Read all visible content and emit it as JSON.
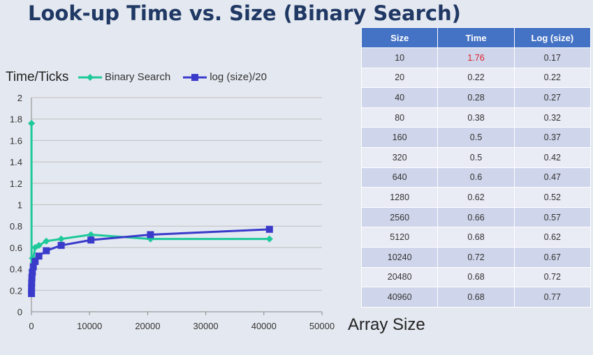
{
  "slide": {
    "title": "Look-up Time vs. Size (Binary Search)"
  },
  "colors": {
    "binary_search": "#1dc99a",
    "log_size": "#3a3acb",
    "title": "#1f3864",
    "table_header": "#4472c4",
    "highlight": "#e0202a"
  },
  "chart_data": {
    "type": "line",
    "ylabel": "Time/Ticks",
    "xlabel": "Array Size",
    "xlim": [
      0,
      50000
    ],
    "ylim": [
      0,
      2
    ],
    "x_ticks": [
      "0",
      "10000",
      "20000",
      "30000",
      "40000",
      "50000"
    ],
    "y_ticks": [
      "0",
      "0.2",
      "0.4",
      "0.6",
      "0.8",
      "1",
      "1.2",
      "1.4",
      "1.6",
      "1.8",
      "2"
    ],
    "x_tick_values": [
      0,
      10000,
      20000,
      30000,
      40000,
      50000
    ],
    "y_tick_values": [
      0,
      0.2,
      0.4,
      0.6,
      0.8,
      1,
      1.2,
      1.4,
      1.6,
      1.8,
      2
    ],
    "grid": "horizontal",
    "legend_position": "top",
    "x": [
      10,
      20,
      40,
      80,
      160,
      320,
      640,
      1280,
      2560,
      5120,
      10240,
      20480,
      40960
    ],
    "series": [
      {
        "name": "Binary Search",
        "marker": "diamond",
        "values": [
          1.76,
          0.22,
          0.28,
          0.38,
          0.5,
          0.5,
          0.6,
          0.62,
          0.66,
          0.68,
          0.72,
          0.68,
          0.68
        ]
      },
      {
        "name": "log (size)/20",
        "marker": "square",
        "values": [
          0.17,
          0.22,
          0.27,
          0.32,
          0.37,
          0.42,
          0.47,
          0.52,
          0.57,
          0.62,
          0.67,
          0.72,
          0.77
        ]
      }
    ]
  },
  "table": {
    "headers": [
      "Size",
      "Time",
      "Log (size)"
    ],
    "rows": [
      [
        "10",
        "1.76",
        "0.17"
      ],
      [
        "20",
        "0.22",
        "0.22"
      ],
      [
        "40",
        "0.28",
        "0.27"
      ],
      [
        "80",
        "0.38",
        "0.32"
      ],
      [
        "160",
        "0.5",
        "0.37"
      ],
      [
        "320",
        "0.5",
        "0.42"
      ],
      [
        "640",
        "0.6",
        "0.47"
      ],
      [
        "1280",
        "0.62",
        "0.52"
      ],
      [
        "2560",
        "0.66",
        "0.57"
      ],
      [
        "5120",
        "0.68",
        "0.62"
      ],
      [
        "10240",
        "0.72",
        "0.67"
      ],
      [
        "20480",
        "0.68",
        "0.72"
      ],
      [
        "40960",
        "0.68",
        "0.77"
      ]
    ]
  }
}
